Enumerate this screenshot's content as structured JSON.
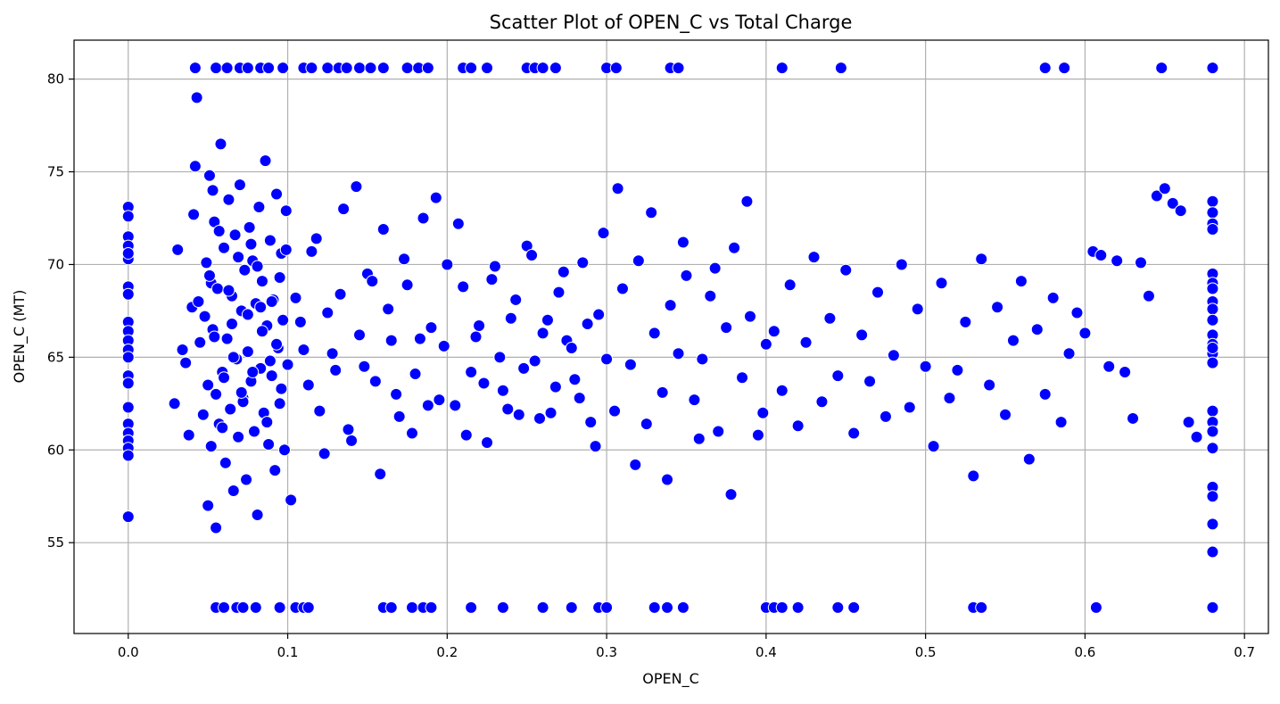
{
  "chart_data": {
    "type": "scatter",
    "title": "Scatter Plot of OPEN_C vs Total Charge",
    "xlabel": "OPEN_C",
    "ylabel": "OPEN_C (MT)",
    "xlim": [
      -0.034,
      0.715
    ],
    "ylim": [
      50.1,
      82.1
    ],
    "xticks": [
      0.0,
      0.1,
      0.2,
      0.3,
      0.4,
      0.5,
      0.6,
      0.7
    ],
    "xtick_labels": [
      "0.0",
      "0.1",
      "0.2",
      "0.3",
      "0.4",
      "0.5",
      "0.6",
      "0.7"
    ],
    "yticks": [
      55,
      60,
      65,
      70,
      75,
      80
    ],
    "ytick_labels": [
      "55",
      "60",
      "65",
      "70",
      "75",
      "80"
    ],
    "grid": true,
    "marker_color": "#0000ff",
    "marker_edge_color": "#ffffff",
    "x": [
      0.0,
      0.0,
      0.0,
      0.0,
      0.0,
      0.0,
      0.0,
      0.0,
      0.0,
      0.0,
      0.0,
      0.0,
      0.0,
      0.0,
      0.0,
      0.0,
      0.0,
      0.0,
      0.0,
      0.0,
      0.0,
      0.0,
      0.029,
      0.031,
      0.034,
      0.036,
      0.038,
      0.04,
      0.041,
      0.042,
      0.043,
      0.044,
      0.045,
      0.047,
      0.048,
      0.049,
      0.05,
      0.05,
      0.051,
      0.052,
      0.052,
      0.053,
      0.054,
      0.055,
      0.055,
      0.056,
      0.057,
      0.058,
      0.059,
      0.06,
      0.061,
      0.062,
      0.063,
      0.064,
      0.065,
      0.066,
      0.067,
      0.068,
      0.069,
      0.07,
      0.071,
      0.072,
      0.073,
      0.074,
      0.075,
      0.076,
      0.077,
      0.078,
      0.079,
      0.08,
      0.081,
      0.082,
      0.083,
      0.084,
      0.085,
      0.086,
      0.087,
      0.088,
      0.089,
      0.09,
      0.091,
      0.092,
      0.093,
      0.094,
      0.095,
      0.096,
      0.097,
      0.098,
      0.099,
      0.1,
      0.051,
      0.054,
      0.057,
      0.06,
      0.063,
      0.066,
      0.069,
      0.072,
      0.075,
      0.078,
      0.081,
      0.084,
      0.087,
      0.09,
      0.093,
      0.096,
      0.099,
      0.053,
      0.059,
      0.065,
      0.071,
      0.077,
      0.083,
      0.089,
      0.095,
      0.105,
      0.11,
      0.115,
      0.12,
      0.125,
      0.13,
      0.135,
      0.14,
      0.145,
      0.15,
      0.155,
      0.16,
      0.165,
      0.17,
      0.175,
      0.18,
      0.185,
      0.19,
      0.195,
      0.2,
      0.102,
      0.108,
      0.113,
      0.118,
      0.123,
      0.128,
      0.133,
      0.138,
      0.143,
      0.148,
      0.153,
      0.158,
      0.163,
      0.168,
      0.173,
      0.178,
      0.183,
      0.188,
      0.193,
      0.198,
      0.205,
      0.21,
      0.215,
      0.22,
      0.225,
      0.23,
      0.235,
      0.24,
      0.245,
      0.25,
      0.255,
      0.26,
      0.265,
      0.27,
      0.275,
      0.28,
      0.285,
      0.29,
      0.295,
      0.3,
      0.207,
      0.212,
      0.218,
      0.223,
      0.228,
      0.233,
      0.238,
      0.243,
      0.248,
      0.253,
      0.258,
      0.263,
      0.268,
      0.273,
      0.278,
      0.283,
      0.288,
      0.293,
      0.298,
      0.305,
      0.31,
      0.315,
      0.32,
      0.325,
      0.33,
      0.335,
      0.34,
      0.345,
      0.35,
      0.355,
      0.36,
      0.365,
      0.37,
      0.375,
      0.38,
      0.385,
      0.39,
      0.395,
      0.4,
      0.307,
      0.318,
      0.328,
      0.338,
      0.348,
      0.358,
      0.368,
      0.378,
      0.388,
      0.398,
      0.405,
      0.41,
      0.415,
      0.42,
      0.425,
      0.43,
      0.435,
      0.44,
      0.445,
      0.45,
      0.455,
      0.46,
      0.465,
      0.47,
      0.475,
      0.48,
      0.485,
      0.49,
      0.495,
      0.5,
      0.505,
      0.51,
      0.515,
      0.52,
      0.525,
      0.53,
      0.535,
      0.54,
      0.545,
      0.55,
      0.555,
      0.56,
      0.565,
      0.57,
      0.575,
      0.58,
      0.585,
      0.59,
      0.595,
      0.6,
      0.605,
      0.61,
      0.615,
      0.62,
      0.625,
      0.63,
      0.635,
      0.64,
      0.645,
      0.65,
      0.655,
      0.66,
      0.665,
      0.67,
      0.68,
      0.68,
      0.68,
      0.68,
      0.68,
      0.68,
      0.68,
      0.68,
      0.68,
      0.68,
      0.68,
      0.68,
      0.68,
      0.68,
      0.68,
      0.68,
      0.68,
      0.68,
      0.68,
      0.68,
      0.68,
      0.68,
      0.68,
      0.68,
      0.042,
      0.055,
      0.062,
      0.07,
      0.075,
      0.083,
      0.088,
      0.097,
      0.11,
      0.115,
      0.125,
      0.132,
      0.137,
      0.145,
      0.152,
      0.16,
      0.175,
      0.182,
      0.188,
      0.21,
      0.215,
      0.225,
      0.25,
      0.255,
      0.26,
      0.268,
      0.3,
      0.306,
      0.34,
      0.345,
      0.41,
      0.447,
      0.575,
      0.587,
      0.648,
      0.68,
      0.055,
      0.06,
      0.068,
      0.072,
      0.08,
      0.095,
      0.105,
      0.11,
      0.113,
      0.16,
      0.165,
      0.178,
      0.185,
      0.19,
      0.215,
      0.235,
      0.26,
      0.278,
      0.295,
      0.3,
      0.33,
      0.338,
      0.348,
      0.4,
      0.405,
      0.41,
      0.42,
      0.445,
      0.455,
      0.53,
      0.535,
      0.607,
      0.68
    ],
    "y": [
      73.1,
      72.6,
      71.5,
      71.0,
      70.3,
      68.8,
      68.4,
      66.9,
      66.4,
      65.9,
      65.4,
      64.0,
      63.6,
      62.3,
      61.4,
      60.9,
      60.5,
      60.1,
      59.7,
      56.4,
      65.0,
      70.6,
      62.5,
      70.8,
      65.4,
      64.7,
      60.8,
      67.7,
      72.7,
      75.3,
      79.0,
      68.0,
      65.8,
      61.9,
      67.2,
      70.1,
      63.5,
      57.0,
      74.8,
      69.0,
      60.2,
      66.5,
      72.3,
      63.0,
      55.8,
      68.7,
      61.4,
      76.5,
      64.2,
      70.9,
      59.3,
      66.0,
      73.5,
      62.2,
      68.3,
      57.8,
      71.6,
      64.9,
      60.7,
      74.3,
      67.5,
      62.8,
      69.7,
      58.4,
      65.3,
      72.0,
      63.7,
      70.2,
      61.0,
      67.9,
      56.5,
      73.1,
      64.4,
      69.1,
      62.0,
      75.6,
      66.7,
      60.3,
      71.3,
      64.0,
      68.1,
      58.9,
      73.8,
      65.5,
      62.5,
      70.6,
      67.0,
      60.0,
      72.9,
      64.6,
      69.4,
      66.1,
      71.8,
      63.9,
      68.6,
      65.0,
      70.4,
      62.6,
      67.3,
      64.2,
      69.9,
      66.4,
      61.5,
      68.0,
      65.7,
      63.3,
      70.8,
      74.0,
      61.2,
      66.8,
      63.1,
      71.1,
      67.7,
      64.8,
      69.3,
      68.2,
      65.4,
      70.7,
      62.1,
      67.4,
      64.3,
      73.0,
      60.5,
      66.2,
      69.5,
      63.7,
      71.9,
      65.9,
      61.8,
      68.9,
      64.1,
      72.5,
      66.6,
      62.7,
      70.0,
      57.3,
      66.9,
      63.5,
      71.4,
      59.8,
      65.2,
      68.4,
      61.1,
      74.2,
      64.5,
      69.1,
      58.7,
      67.6,
      63.0,
      70.3,
      60.9,
      66.0,
      62.4,
      73.6,
      65.6,
      62.4,
      68.8,
      64.2,
      66.7,
      60.4,
      69.9,
      63.2,
      67.1,
      61.9,
      71.0,
      64.8,
      66.3,
      62.0,
      68.5,
      65.9,
      63.8,
      70.1,
      61.5,
      67.3,
      64.9,
      72.2,
      60.8,
      66.1,
      63.6,
      69.2,
      65.0,
      62.2,
      68.1,
      64.4,
      70.5,
      61.7,
      67.0,
      63.4,
      69.6,
      65.5,
      62.8,
      66.8,
      60.2,
      71.7,
      62.1,
      68.7,
      64.6,
      70.2,
      61.4,
      66.3,
      63.1,
      67.8,
      65.2,
      69.4,
      62.7,
      64.9,
      68.3,
      61.0,
      66.6,
      70.9,
      63.9,
      67.2,
      60.8,
      65.7,
      74.1,
      59.2,
      72.8,
      58.4,
      71.2,
      60.6,
      69.8,
      57.6,
      73.4,
      62.0,
      66.4,
      63.2,
      68.9,
      61.3,
      65.8,
      70.4,
      62.6,
      67.1,
      64.0,
      69.7,
      60.9,
      66.2,
      63.7,
      68.5,
      61.8,
      65.1,
      70.0,
      62.3,
      67.6,
      64.5,
      60.2,
      69.0,
      62.8,
      64.3,
      66.9,
      58.6,
      70.3,
      63.5,
      67.7,
      61.9,
      65.9,
      69.1,
      59.5,
      66.5,
      63.0,
      68.2,
      61.5,
      65.2,
      67.4,
      66.3,
      70.7,
      70.5,
      64.5,
      70.2,
      64.2,
      61.7,
      70.1,
      68.3,
      73.7,
      74.1,
      73.3,
      72.9,
      61.5,
      60.7,
      73.4,
      72.8,
      72.2,
      71.9,
      69.5,
      69.0,
      68.7,
      68.0,
      67.6,
      66.2,
      65.7,
      65.2,
      64.7,
      62.1,
      61.5,
      61.0,
      60.1,
      58.0,
      57.5,
      56.0,
      54.5,
      51.5,
      65.5,
      67.0,
      80.6,
      80.6,
      80.6,
      80.6,
      80.6,
      80.6,
      80.6,
      80.6,
      80.6,
      80.6,
      80.6,
      80.6,
      80.6,
      80.6,
      80.6,
      80.6,
      80.6,
      80.6,
      80.6,
      80.6,
      80.6,
      80.6,
      80.6,
      80.6,
      80.6,
      80.6,
      80.6,
      80.6,
      80.6,
      80.6,
      80.6,
      80.6,
      80.6,
      80.6,
      80.6,
      80.6,
      51.5,
      51.5,
      51.5,
      51.5,
      51.5,
      51.5,
      51.5,
      51.5,
      51.5,
      51.5,
      51.5,
      51.5,
      51.5,
      51.5,
      51.5,
      51.5,
      51.5,
      51.5,
      51.5,
      51.5,
      51.5,
      51.5,
      51.5,
      51.5,
      51.5,
      51.5,
      51.5,
      51.5,
      51.5,
      51.5,
      51.5,
      51.5,
      51.5
    ]
  }
}
